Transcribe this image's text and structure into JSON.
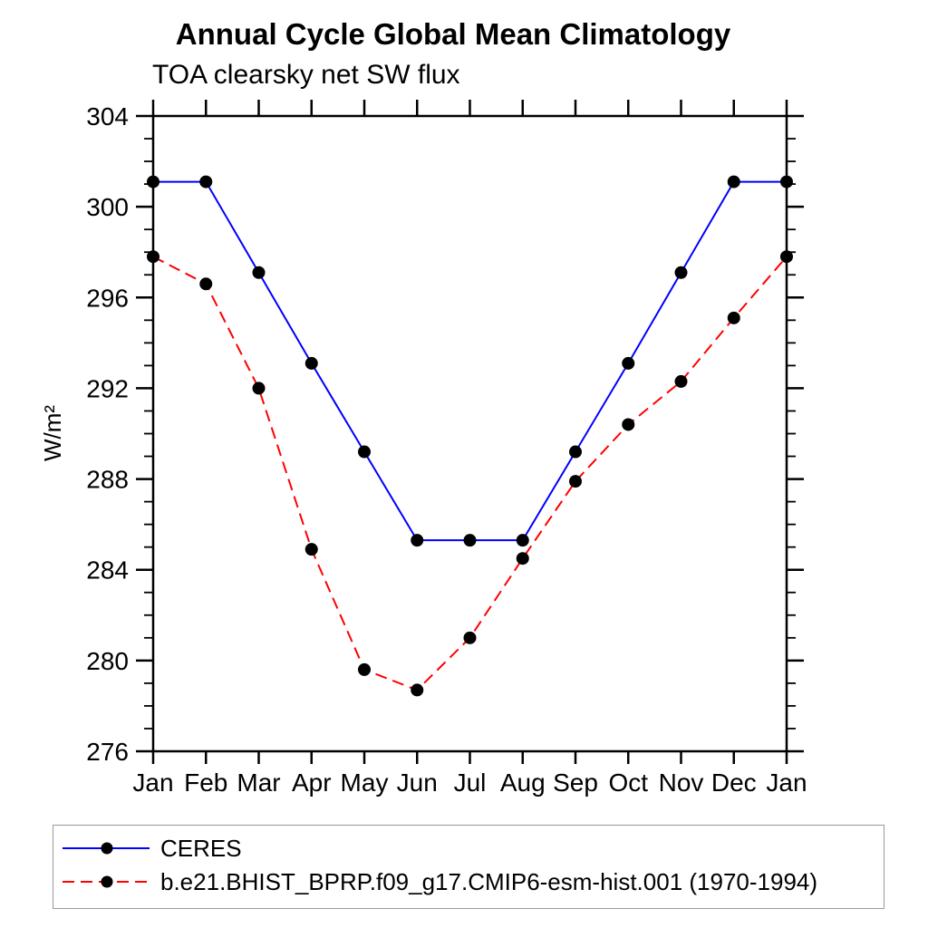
{
  "chart_data": {
    "type": "line",
    "title": "Annual Cycle Global Mean Climatology",
    "subtitle": "TOA clearsky net SW flux",
    "ylabel": "W/m²",
    "xlabel": "",
    "categories": [
      "Jan",
      "Feb",
      "Mar",
      "Apr",
      "May",
      "Jun",
      "Jul",
      "Aug",
      "Sep",
      "Oct",
      "Nov",
      "Dec",
      "Jan"
    ],
    "series": [
      {
        "name": "CERES",
        "color": "#0000ff",
        "line_style": "solid",
        "marker": "circle",
        "marker_color": "#000000",
        "values": [
          301.1,
          301.1,
          297.1,
          293.1,
          289.2,
          285.3,
          285.3,
          285.3,
          289.2,
          293.1,
          297.1,
          301.1,
          301.1
        ]
      },
      {
        "name": "b.e21.BHIST_BPRP.f09_g17.CMIP6-esm-hist.001 (1970-1994)",
        "color": "#ff0000",
        "line_style": "dashed",
        "marker": "circle",
        "marker_color": "#000000",
        "values": [
          297.8,
          296.6,
          292.0,
          284.9,
          279.6,
          278.7,
          281.0,
          284.5,
          287.9,
          290.4,
          292.3,
          295.1,
          297.8
        ]
      }
    ],
    "ylim": [
      276,
      304
    ],
    "ytick_major_step": 4,
    "ytick_minor_step": 1,
    "ytick_labels": [
      "276",
      "280",
      "284",
      "288",
      "292",
      "296",
      "300",
      "304"
    ],
    "grid": false,
    "legend_position": "bottom",
    "axis_color": "#000000",
    "background_color": "#ffffff"
  }
}
